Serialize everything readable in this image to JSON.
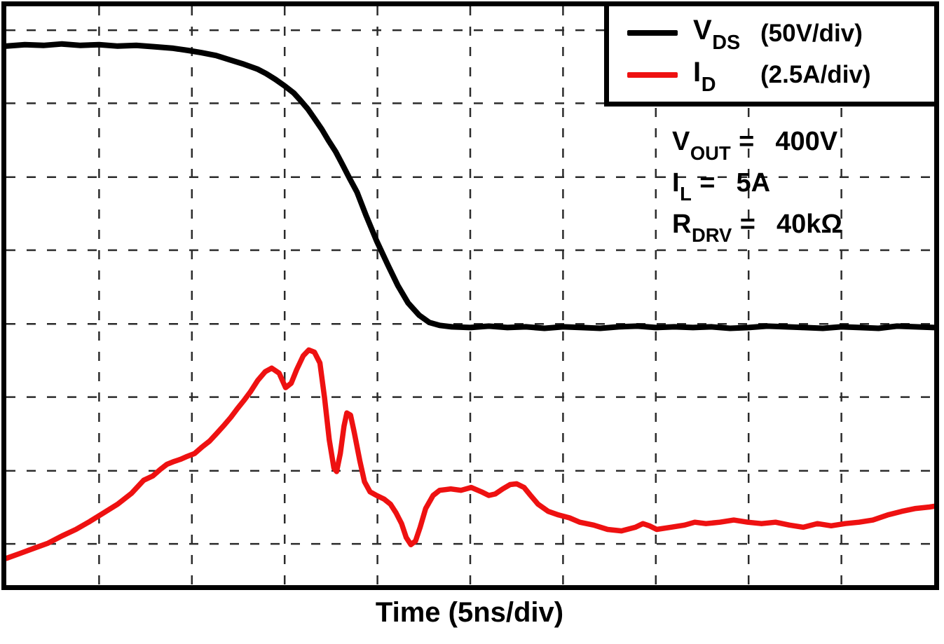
{
  "figure": {
    "x_axis_label": "Time (5ns/div)"
  },
  "legend": {
    "items": [
      {
        "sym": "V",
        "sub": "DS",
        "scale": "(50V/div)",
        "color": "#000000"
      },
      {
        "sym": "I",
        "sub": "D",
        "scale": "(2.5A/div)",
        "color": "#ee1111"
      }
    ]
  },
  "annotations": [
    {
      "sym": "V",
      "sub": "OUT",
      "eq": "=",
      "value": "400V"
    },
    {
      "sym": "I",
      "sub": "L",
      "eq": "=",
      "value": "5A"
    },
    {
      "sym": "R",
      "sub": "DRV",
      "eq": "=",
      "value": "40kΩ"
    }
  ],
  "chart_data": {
    "type": "line",
    "title": "",
    "xlabel": "Time (5ns/div)",
    "ylabel": "",
    "x_divisions": 10,
    "y_divisions": 8,
    "x_range_div": [
      0,
      10
    ],
    "y_range_div": [
      0,
      8
    ],
    "x_scale": "5 ns/div",
    "grid": {
      "style": "dashed",
      "v_positions_div": [
        1,
        2,
        3,
        4,
        5,
        6,
        7,
        8,
        9
      ],
      "h_positions_div": [
        0.33,
        1.34,
        2.36,
        3.37,
        4.39,
        5.4,
        6.42,
        7.43
      ]
    },
    "legend_position": "top-right",
    "series": [
      {
        "id": "vds-trace",
        "name": "VDS",
        "scale": "50V/div",
        "color": "#000000",
        "points": [
          [
            0.0,
            0.55
          ],
          [
            0.2,
            0.53
          ],
          [
            0.4,
            0.54
          ],
          [
            0.6,
            0.52
          ],
          [
            0.8,
            0.54
          ],
          [
            1.0,
            0.53
          ],
          [
            1.2,
            0.55
          ],
          [
            1.4,
            0.54
          ],
          [
            1.6,
            0.56
          ],
          [
            1.8,
            0.58
          ],
          [
            1.96,
            0.61
          ],
          [
            2.1,
            0.64
          ],
          [
            2.26,
            0.68
          ],
          [
            2.41,
            0.74
          ],
          [
            2.56,
            0.8
          ],
          [
            2.71,
            0.87
          ],
          [
            2.8,
            0.93
          ],
          [
            2.9,
            1.01
          ],
          [
            3.0,
            1.1
          ],
          [
            3.1,
            1.2
          ],
          [
            3.17,
            1.3
          ],
          [
            3.25,
            1.42
          ],
          [
            3.32,
            1.55
          ],
          [
            3.4,
            1.7
          ],
          [
            3.47,
            1.85
          ],
          [
            3.55,
            2.01
          ],
          [
            3.62,
            2.18
          ],
          [
            3.7,
            2.38
          ],
          [
            3.78,
            2.57
          ],
          [
            3.88,
            2.9
          ],
          [
            3.99,
            3.24
          ],
          [
            4.11,
            3.57
          ],
          [
            4.22,
            3.86
          ],
          [
            4.33,
            4.1
          ],
          [
            4.45,
            4.27
          ],
          [
            4.56,
            4.37
          ],
          [
            4.67,
            4.41
          ],
          [
            4.8,
            4.43
          ],
          [
            5.0,
            4.44
          ],
          [
            5.2,
            4.42
          ],
          [
            5.4,
            4.44
          ],
          [
            5.6,
            4.43
          ],
          [
            5.8,
            4.45
          ],
          [
            6.0,
            4.43
          ],
          [
            6.2,
            4.44
          ],
          [
            6.4,
            4.45
          ],
          [
            6.6,
            4.43
          ],
          [
            6.8,
            4.42
          ],
          [
            7.0,
            4.44
          ],
          [
            7.2,
            4.43
          ],
          [
            7.4,
            4.44
          ],
          [
            7.6,
            4.43
          ],
          [
            7.8,
            4.45
          ],
          [
            8.0,
            4.44
          ],
          [
            8.2,
            4.42
          ],
          [
            8.4,
            4.43
          ],
          [
            8.6,
            4.44
          ],
          [
            8.8,
            4.45
          ],
          [
            9.0,
            4.43
          ],
          [
            9.2,
            4.44
          ],
          [
            9.4,
            4.45
          ],
          [
            9.6,
            4.42
          ],
          [
            9.8,
            4.43
          ],
          [
            10.0,
            4.44
          ]
        ]
      },
      {
        "id": "id-trace",
        "name": "ID",
        "scale": "2.5A/div",
        "color": "#ee1111",
        "points": [
          [
            0.0,
            7.63
          ],
          [
            0.15,
            7.56
          ],
          [
            0.3,
            7.49
          ],
          [
            0.45,
            7.42
          ],
          [
            0.6,
            7.32
          ],
          [
            0.75,
            7.23
          ],
          [
            0.9,
            7.12
          ],
          [
            1.05,
            7.0
          ],
          [
            1.2,
            6.88
          ],
          [
            1.35,
            6.73
          ],
          [
            1.48,
            6.55
          ],
          [
            1.58,
            6.49
          ],
          [
            1.66,
            6.4
          ],
          [
            1.73,
            6.33
          ],
          [
            1.81,
            6.29
          ],
          [
            1.88,
            6.26
          ],
          [
            1.95,
            6.22
          ],
          [
            2.03,
            6.18
          ],
          [
            2.11,
            6.09
          ],
          [
            2.19,
            6.01
          ],
          [
            2.27,
            5.9
          ],
          [
            2.34,
            5.8
          ],
          [
            2.42,
            5.68
          ],
          [
            2.49,
            5.56
          ],
          [
            2.56,
            5.45
          ],
          [
            2.63,
            5.33
          ],
          [
            2.71,
            5.17
          ],
          [
            2.79,
            5.05
          ],
          [
            2.86,
            5.0
          ],
          [
            2.94,
            5.07
          ],
          [
            3.01,
            5.27
          ],
          [
            3.07,
            5.21
          ],
          [
            3.13,
            5.02
          ],
          [
            3.2,
            4.83
          ],
          [
            3.26,
            4.75
          ],
          [
            3.32,
            4.78
          ],
          [
            3.38,
            4.93
          ],
          [
            3.43,
            5.41
          ],
          [
            3.48,
            5.99
          ],
          [
            3.53,
            6.38
          ],
          [
            3.56,
            6.43
          ],
          [
            3.6,
            6.18
          ],
          [
            3.64,
            5.8
          ],
          [
            3.67,
            5.62
          ],
          [
            3.71,
            5.65
          ],
          [
            3.75,
            5.89
          ],
          [
            3.81,
            6.28
          ],
          [
            3.86,
            6.57
          ],
          [
            3.92,
            6.71
          ],
          [
            3.99,
            6.76
          ],
          [
            4.07,
            6.81
          ],
          [
            4.14,
            6.88
          ],
          [
            4.2,
            7.0
          ],
          [
            4.26,
            7.15
          ],
          [
            4.31,
            7.34
          ],
          [
            4.36,
            7.44
          ],
          [
            4.41,
            7.39
          ],
          [
            4.46,
            7.2
          ],
          [
            4.52,
            6.94
          ],
          [
            4.6,
            6.76
          ],
          [
            4.67,
            6.69
          ],
          [
            4.79,
            6.67
          ],
          [
            4.9,
            6.69
          ],
          [
            5.01,
            6.65
          ],
          [
            5.12,
            6.71
          ],
          [
            5.2,
            6.76
          ],
          [
            5.27,
            6.74
          ],
          [
            5.35,
            6.67
          ],
          [
            5.43,
            6.61
          ],
          [
            5.5,
            6.6
          ],
          [
            5.58,
            6.65
          ],
          [
            5.65,
            6.76
          ],
          [
            5.73,
            6.88
          ],
          [
            5.84,
            6.98
          ],
          [
            5.95,
            7.03
          ],
          [
            6.07,
            7.07
          ],
          [
            6.18,
            7.13
          ],
          [
            6.33,
            7.17
          ],
          [
            6.48,
            7.23
          ],
          [
            6.63,
            7.25
          ],
          [
            6.78,
            7.2
          ],
          [
            6.86,
            7.15
          ],
          [
            6.93,
            7.18
          ],
          [
            7.01,
            7.23
          ],
          [
            7.16,
            7.2
          ],
          [
            7.31,
            7.17
          ],
          [
            7.42,
            7.13
          ],
          [
            7.54,
            7.15
          ],
          [
            7.69,
            7.13
          ],
          [
            7.84,
            7.1
          ],
          [
            7.99,
            7.13
          ],
          [
            8.14,
            7.15
          ],
          [
            8.29,
            7.13
          ],
          [
            8.44,
            7.17
          ],
          [
            8.59,
            7.2
          ],
          [
            8.74,
            7.15
          ],
          [
            8.89,
            7.18
          ],
          [
            9.04,
            7.15
          ],
          [
            9.19,
            7.13
          ],
          [
            9.34,
            7.1
          ],
          [
            9.5,
            7.03
          ],
          [
            9.65,
            6.98
          ],
          [
            9.8,
            6.94
          ],
          [
            9.95,
            6.92
          ],
          [
            10.0,
            6.91
          ]
        ]
      }
    ]
  }
}
